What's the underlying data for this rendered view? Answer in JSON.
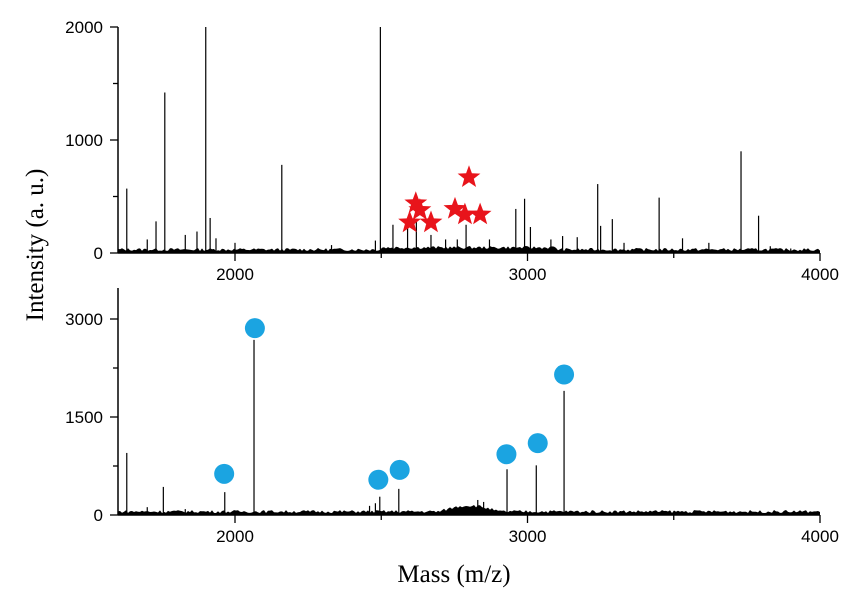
{
  "chart_data": [
    {
      "type": "line",
      "panel": "top",
      "xlim": [
        1600,
        4000
      ],
      "ylim": [
        0,
        2000
      ],
      "xticks": [
        "2000",
        "3000",
        "4000"
      ],
      "yticks": [
        "0",
        "1000",
        "2000"
      ],
      "legend": "none",
      "grid": false,
      "spectrum_peaks": {
        "x": [
          1630,
          1700,
          1730,
          1760,
          1830,
          1870,
          1900,
          1915,
          1935,
          2000,
          2160,
          2330,
          2480,
          2497,
          2540,
          2590,
          2620,
          2670,
          2720,
          2760,
          2790,
          2870,
          2960,
          2990,
          3010,
          3080,
          3120,
          3170,
          3240,
          3250,
          3290,
          3330,
          3450,
          3530,
          3620,
          3730,
          3790,
          3830,
          3900
        ],
        "y": [
          570,
          120,
          280,
          1420,
          160,
          190,
          2000,
          310,
          130,
          90,
          780,
          70,
          110,
          2000,
          250,
          230,
          280,
          160,
          120,
          120,
          250,
          120,
          390,
          480,
          230,
          120,
          150,
          140,
          610,
          240,
          300,
          90,
          490,
          130,
          90,
          900,
          330,
          60,
          40
        ]
      },
      "markers": {
        "shape": "star",
        "color": "#e8141b",
        "x": [
          2597,
          2618,
          2632,
          2670,
          2752,
          2786,
          2800,
          2838
        ],
        "y": [
          270,
          440,
          380,
          270,
          390,
          340,
          670,
          340
        ]
      }
    },
    {
      "type": "line",
      "panel": "bottom",
      "xlim": [
        1600,
        4000
      ],
      "ylim": [
        0,
        3000
      ],
      "xticks": [
        "2000",
        "3000",
        "4000"
      ],
      "yticks": [
        "0",
        "1500",
        "3000"
      ],
      "legend": "none",
      "grid": false,
      "spectrum_peaks": {
        "x": [
          1630,
          1700,
          1755,
          1830,
          1965,
          2065,
          2460,
          2480,
          2495,
          2560,
          2750,
          2830,
          2850,
          2930,
          3030,
          3125
        ],
        "y": [
          950,
          120,
          430,
          90,
          350,
          2680,
          140,
          180,
          280,
          400,
          120,
          230,
          200,
          700,
          760,
          1900
        ]
      },
      "markers": {
        "shape": "circle",
        "color": "#1ba4e1",
        "x": [
          1963,
          2068,
          2490,
          2563,
          2928,
          3035,
          3125
        ],
        "y": [
          630,
          2860,
          540,
          690,
          930,
          1100,
          2150
        ]
      }
    }
  ],
  "labels": {
    "ylabel": "Intensity (a. u.)",
    "xlabel": "Mass (m/z)"
  }
}
